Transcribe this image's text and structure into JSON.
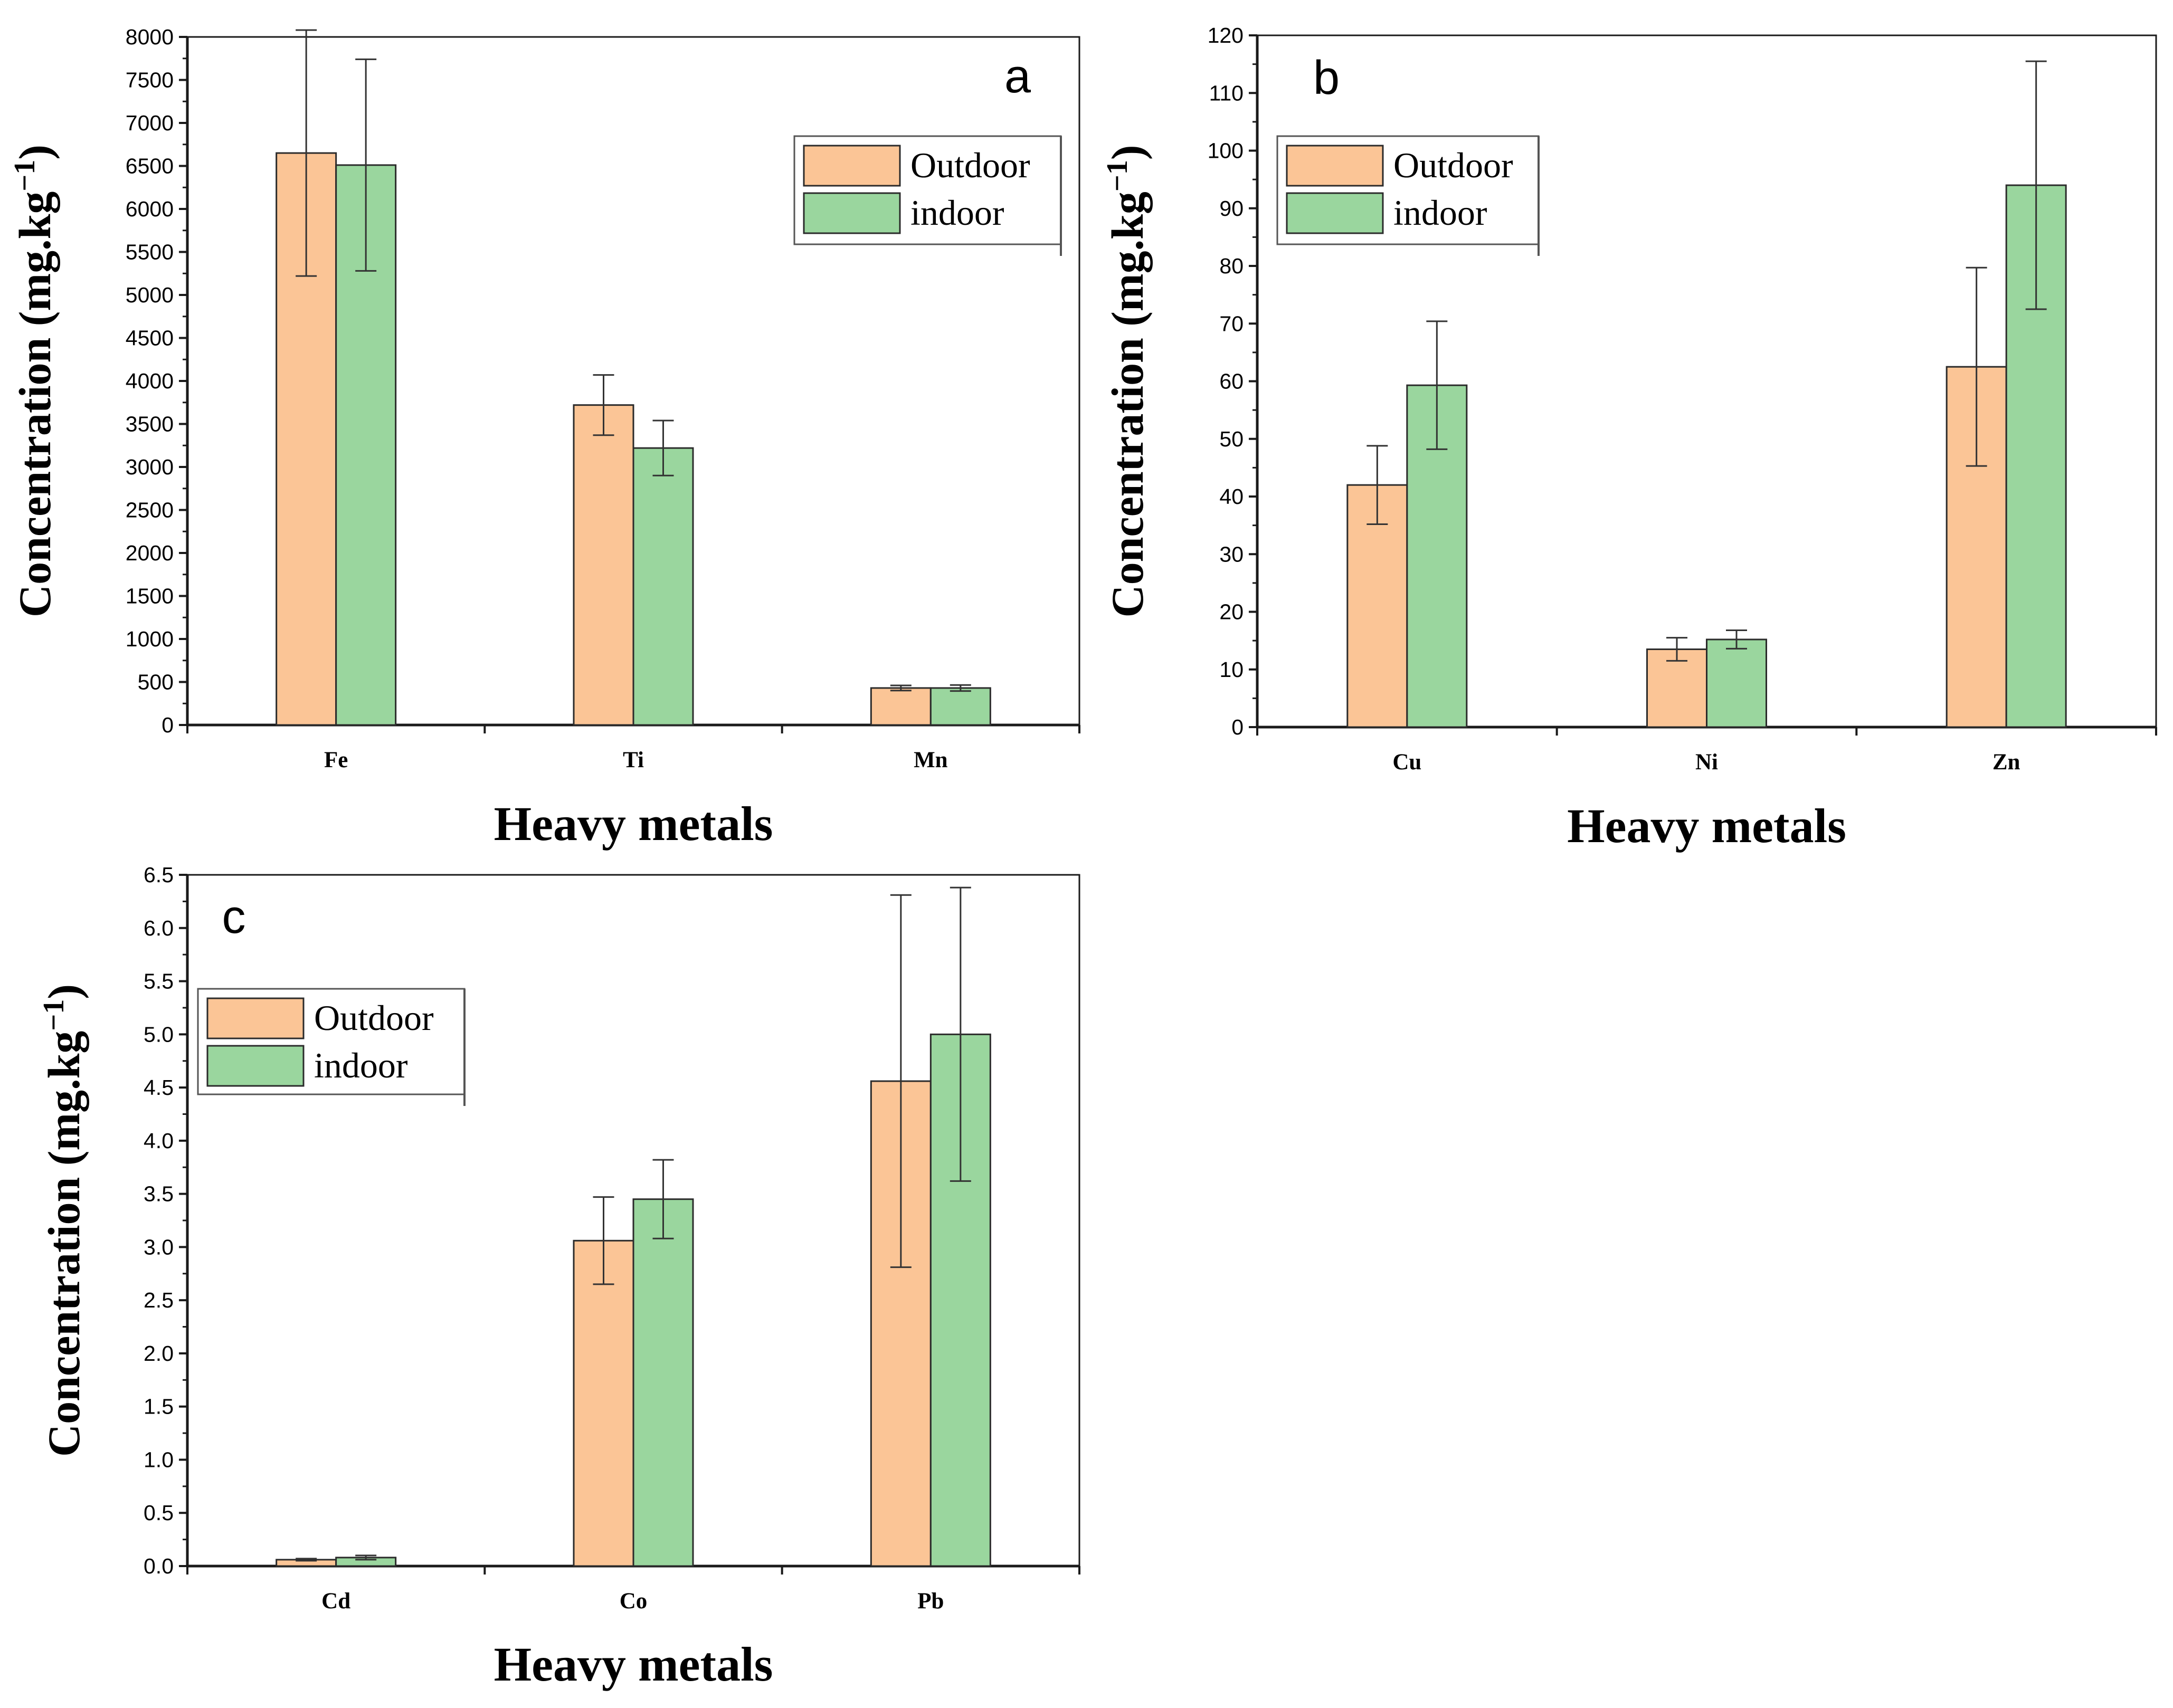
{
  "chart_data": [
    {
      "type": "bar",
      "panel_label": "a",
      "categories": [
        "Fe",
        "Ti",
        "Mn"
      ],
      "series": [
        {
          "name": "Outdoor",
          "values": [
            6650,
            3720,
            430
          ],
          "errors": [
            1430,
            350,
            30
          ]
        },
        {
          "name": "indoor",
          "values": [
            6510,
            3220,
            430
          ],
          "errors": [
            1230,
            320,
            35
          ]
        }
      ],
      "xlabel": "Heavy metals",
      "ylabel": "Concentration (mg.kg",
      "ylabel_exponent": "−1",
      "ylabel_close": ")",
      "ylim": [
        0,
        8000
      ],
      "yticks": [
        "0",
        "500",
        "1000",
        "1500",
        "2000",
        "2500",
        "3000",
        "3500",
        "4000",
        "4500",
        "5000",
        "5500",
        "6000",
        "6500",
        "7000",
        "7500",
        "8000"
      ],
      "legend_position": "top-right"
    },
    {
      "type": "bar",
      "panel_label": "b",
      "categories": [
        "Cu",
        "Ni",
        "Zn"
      ],
      "series": [
        {
          "name": "Outdoor",
          "values": [
            42,
            13.5,
            62.5
          ],
          "errors": [
            6.8,
            2.0,
            17.2
          ]
        },
        {
          "name": "indoor",
          "values": [
            59.3,
            15.2,
            94
          ],
          "errors": [
            11.1,
            1.6,
            21.5
          ]
        }
      ],
      "xlabel": "Heavy metals",
      "ylabel": "Concentration (mg.kg",
      "ylabel_exponent": "−1",
      "ylabel_close": ")",
      "ylim": [
        0,
        120
      ],
      "yticks": [
        "0",
        "10",
        "20",
        "30",
        "40",
        "50",
        "60",
        "70",
        "80",
        "90",
        "100",
        "110",
        "120"
      ],
      "legend_position": "top-left"
    },
    {
      "type": "bar",
      "panel_label": "c",
      "categories": [
        "Cd",
        "Co",
        "Pb"
      ],
      "series": [
        {
          "name": "Outdoor",
          "values": [
            0.06,
            3.06,
            4.56
          ],
          "errors": [
            0.01,
            0.41,
            1.75
          ]
        },
        {
          "name": "indoor",
          "values": [
            0.08,
            3.45,
            5.0
          ],
          "errors": [
            0.02,
            0.37,
            1.38
          ]
        }
      ],
      "xlabel": "Heavy metals",
      "ylabel": "Concentration (mg.kg",
      "ylabel_exponent": "−1",
      "ylabel_close": ")",
      "ylim": [
        0,
        6.5
      ],
      "yticks": [
        "0.0",
        "0.5",
        "1.0",
        "1.5",
        "2.0",
        "2.5",
        "3.0",
        "3.5",
        "4.0",
        "4.5",
        "5.0",
        "5.5",
        "6.0",
        "6.5"
      ],
      "legend_position": "top-left"
    }
  ],
  "colors": {
    "outdoor": "#fbc596",
    "indoor": "#9ad69e",
    "axis": "#1a1a1a",
    "error_bar": "#333333",
    "legend_border": "#555555"
  }
}
